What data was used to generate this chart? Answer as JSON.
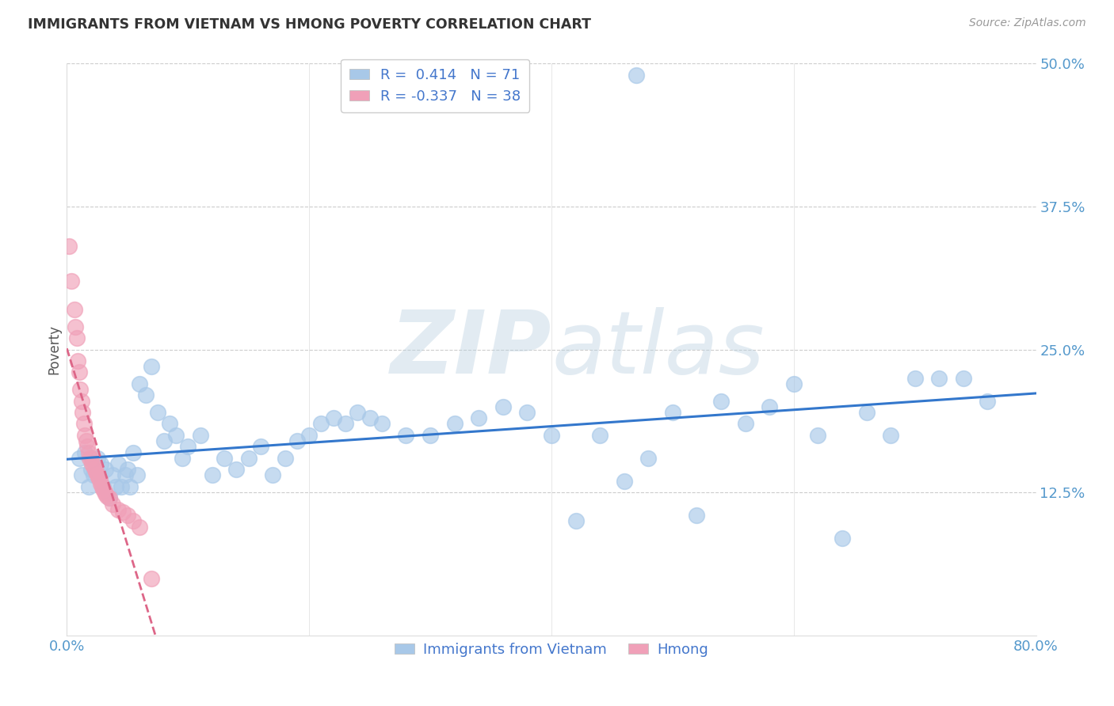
{
  "title": "IMMIGRANTS FROM VIETNAM VS HMONG POVERTY CORRELATION CHART",
  "source": "Source: ZipAtlas.com",
  "xlabel": "",
  "ylabel": "Poverty",
  "watermark": "ZIPatlas",
  "xlim": [
    0.0,
    0.8
  ],
  "ylim": [
    0.0,
    0.5
  ],
  "xticks": [
    0.0,
    0.2,
    0.4,
    0.6,
    0.8
  ],
  "xtick_labels": [
    "0.0%",
    "",
    "",
    "",
    "80.0%"
  ],
  "ytick_labels": [
    "12.5%",
    "25.0%",
    "37.5%",
    "50.0%"
  ],
  "yticks": [
    0.125,
    0.25,
    0.375,
    0.5
  ],
  "vietnam_R": 0.414,
  "vietnam_N": 71,
  "hmong_R": -0.337,
  "hmong_N": 38,
  "vietnam_color": "#a8c8e8",
  "hmong_color": "#f0a0b8",
  "vietnam_line_color": "#3377cc",
  "hmong_line_color": "#dd6688",
  "legend_label_vietnam": "Immigrants from Vietnam",
  "legend_label_hmong": "Hmong",
  "title_color": "#333333",
  "axis_color": "#5599cc",
  "vietnam_x": [
    0.01,
    0.012,
    0.015,
    0.018,
    0.02,
    0.022,
    0.025,
    0.028,
    0.03,
    0.032,
    0.035,
    0.038,
    0.04,
    0.042,
    0.045,
    0.048,
    0.05,
    0.052,
    0.055,
    0.058,
    0.06,
    0.065,
    0.07,
    0.075,
    0.08,
    0.085,
    0.09,
    0.095,
    0.1,
    0.11,
    0.12,
    0.13,
    0.14,
    0.15,
    0.16,
    0.17,
    0.18,
    0.19,
    0.2,
    0.21,
    0.22,
    0.23,
    0.24,
    0.25,
    0.26,
    0.28,
    0.3,
    0.32,
    0.34,
    0.36,
    0.38,
    0.4,
    0.42,
    0.44,
    0.46,
    0.48,
    0.5,
    0.52,
    0.54,
    0.56,
    0.58,
    0.6,
    0.62,
    0.64,
    0.66,
    0.68,
    0.7,
    0.72,
    0.74,
    0.76,
    0.47
  ],
  "vietnam_y": [
    0.155,
    0.14,
    0.16,
    0.13,
    0.145,
    0.14,
    0.155,
    0.15,
    0.13,
    0.145,
    0.12,
    0.14,
    0.13,
    0.15,
    0.13,
    0.14,
    0.145,
    0.13,
    0.16,
    0.14,
    0.22,
    0.21,
    0.235,
    0.195,
    0.17,
    0.185,
    0.175,
    0.155,
    0.165,
    0.175,
    0.14,
    0.155,
    0.145,
    0.155,
    0.165,
    0.14,
    0.155,
    0.17,
    0.175,
    0.185,
    0.19,
    0.185,
    0.195,
    0.19,
    0.185,
    0.175,
    0.175,
    0.185,
    0.19,
    0.2,
    0.195,
    0.175,
    0.1,
    0.175,
    0.135,
    0.155,
    0.195,
    0.105,
    0.205,
    0.185,
    0.2,
    0.22,
    0.175,
    0.085,
    0.195,
    0.175,
    0.225,
    0.225,
    0.225,
    0.205,
    0.49
  ],
  "hmong_x": [
    0.002,
    0.004,
    0.006,
    0.007,
    0.008,
    0.009,
    0.01,
    0.011,
    0.012,
    0.013,
    0.014,
    0.015,
    0.016,
    0.017,
    0.018,
    0.019,
    0.02,
    0.021,
    0.022,
    0.023,
    0.024,
    0.025,
    0.026,
    0.027,
    0.028,
    0.029,
    0.03,
    0.031,
    0.032,
    0.033,
    0.035,
    0.038,
    0.042,
    0.046,
    0.05,
    0.055,
    0.06,
    0.07
  ],
  "hmong_y": [
    0.34,
    0.31,
    0.285,
    0.27,
    0.26,
    0.24,
    0.23,
    0.215,
    0.205,
    0.195,
    0.185,
    0.175,
    0.17,
    0.165,
    0.16,
    0.155,
    0.155,
    0.15,
    0.148,
    0.145,
    0.143,
    0.14,
    0.138,
    0.136,
    0.133,
    0.13,
    0.128,
    0.126,
    0.124,
    0.122,
    0.12,
    0.115,
    0.11,
    0.108,
    0.105,
    0.1,
    0.095,
    0.05
  ]
}
